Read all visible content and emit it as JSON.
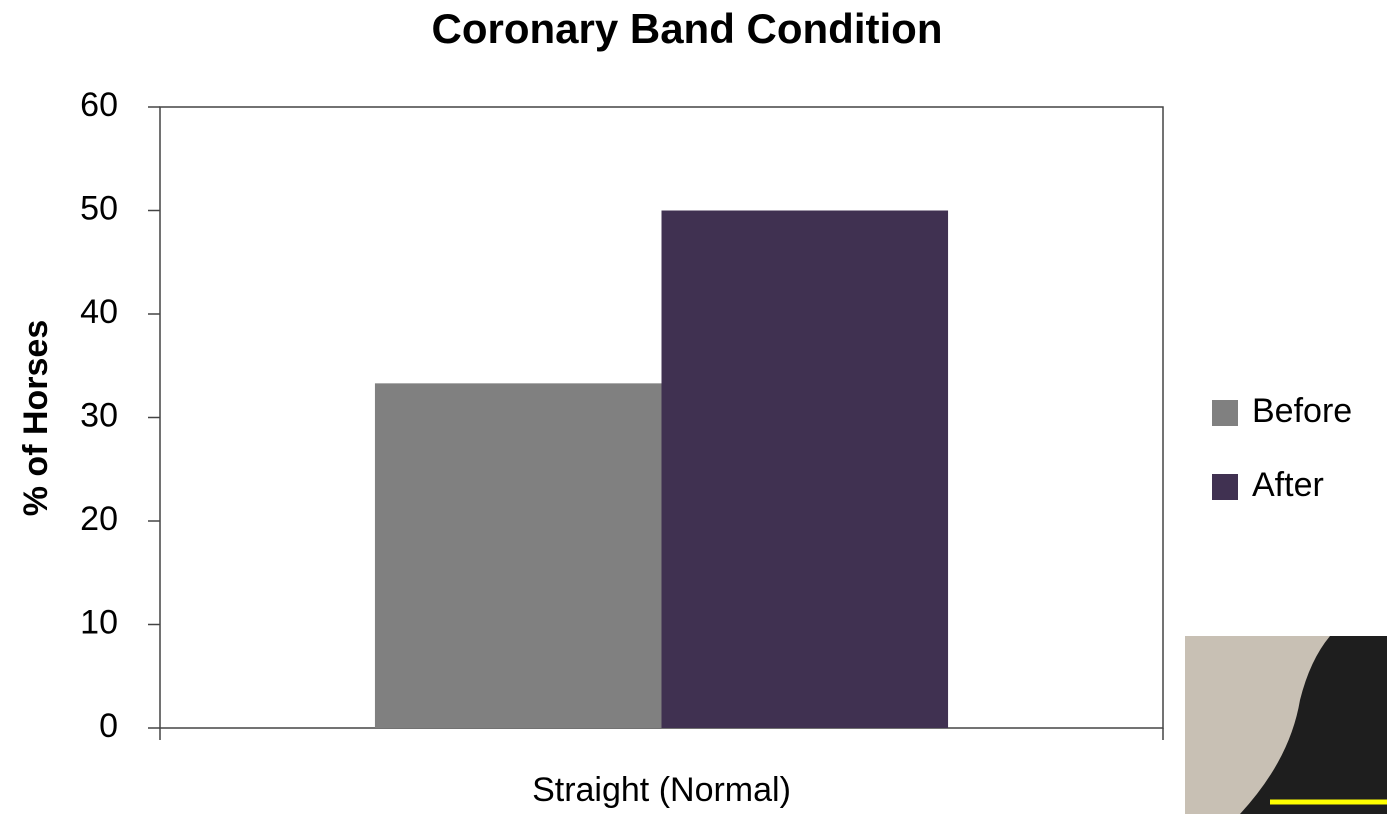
{
  "chart_data": {
    "type": "bar",
    "title": "Coronary Band Condition",
    "y_label": "% of Horses",
    "categories": [
      "Straight (Normal)"
    ],
    "series": [
      {
        "name": "Before",
        "color": "#808080",
        "values": [
          33.3
        ]
      },
      {
        "name": "After",
        "color": "#403151",
        "values": [
          50
        ]
      }
    ],
    "ylim": [
      0,
      60
    ],
    "yticks": [
      0,
      10,
      20,
      30,
      40,
      50,
      60
    ],
    "grid": false,
    "legend": "right"
  }
}
